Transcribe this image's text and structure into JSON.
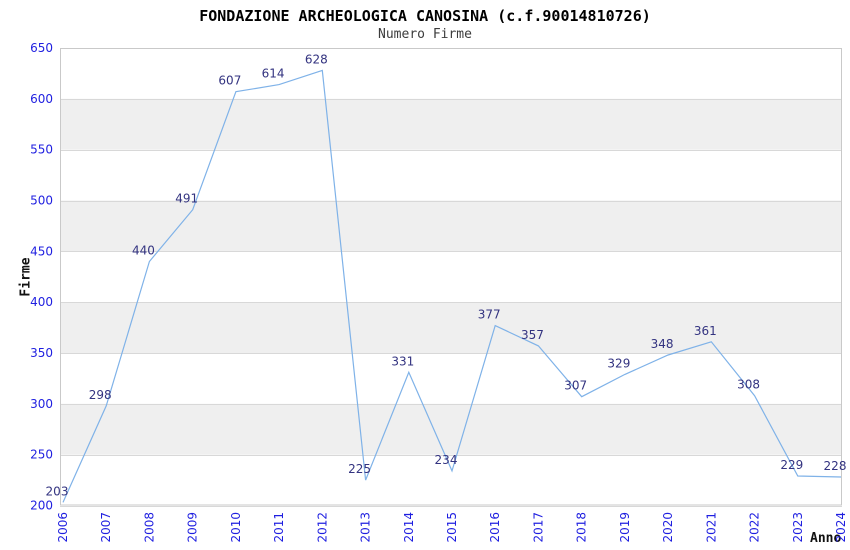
{
  "chart_data": {
    "type": "line",
    "title": "FONDAZIONE ARCHEOLOGICA CANOSINA (c.f.90014810726)",
    "subtitle": "Numero Firme",
    "xlabel": "Anno",
    "ylabel": "Firme",
    "categories": [
      "2006",
      "2007",
      "2008",
      "2009",
      "2010",
      "2011",
      "2012",
      "2013",
      "2014",
      "2015",
      "2016",
      "2017",
      "2018",
      "2019",
      "2020",
      "2021",
      "2022",
      "2023",
      "2024"
    ],
    "series": [
      {
        "name": "Numero Firme",
        "values": [
          203,
          298,
          440,
          491,
          607,
          614,
          628,
          225,
          331,
          234,
          377,
          357,
          307,
          329,
          348,
          361,
          308,
          229,
          228
        ]
      }
    ],
    "ylim": [
      200,
      650
    ],
    "ytick_step": 50,
    "y_ticks": [
      200,
      250,
      300,
      350,
      400,
      450,
      500,
      550,
      600,
      650
    ],
    "grid": true,
    "legend_position": "none",
    "show_point_labels": true,
    "colors": {
      "line": "#7fb2e8",
      "axis_tick_label": "#1f1fe0",
      "point_label": "#333380",
      "band_fill": "#efefef",
      "grid_line": "#d8d8d8",
      "plot_border": "#c9c9c9",
      "title": "#000000",
      "subtitle": "#3c3c3c",
      "background": "#ffffff"
    }
  }
}
